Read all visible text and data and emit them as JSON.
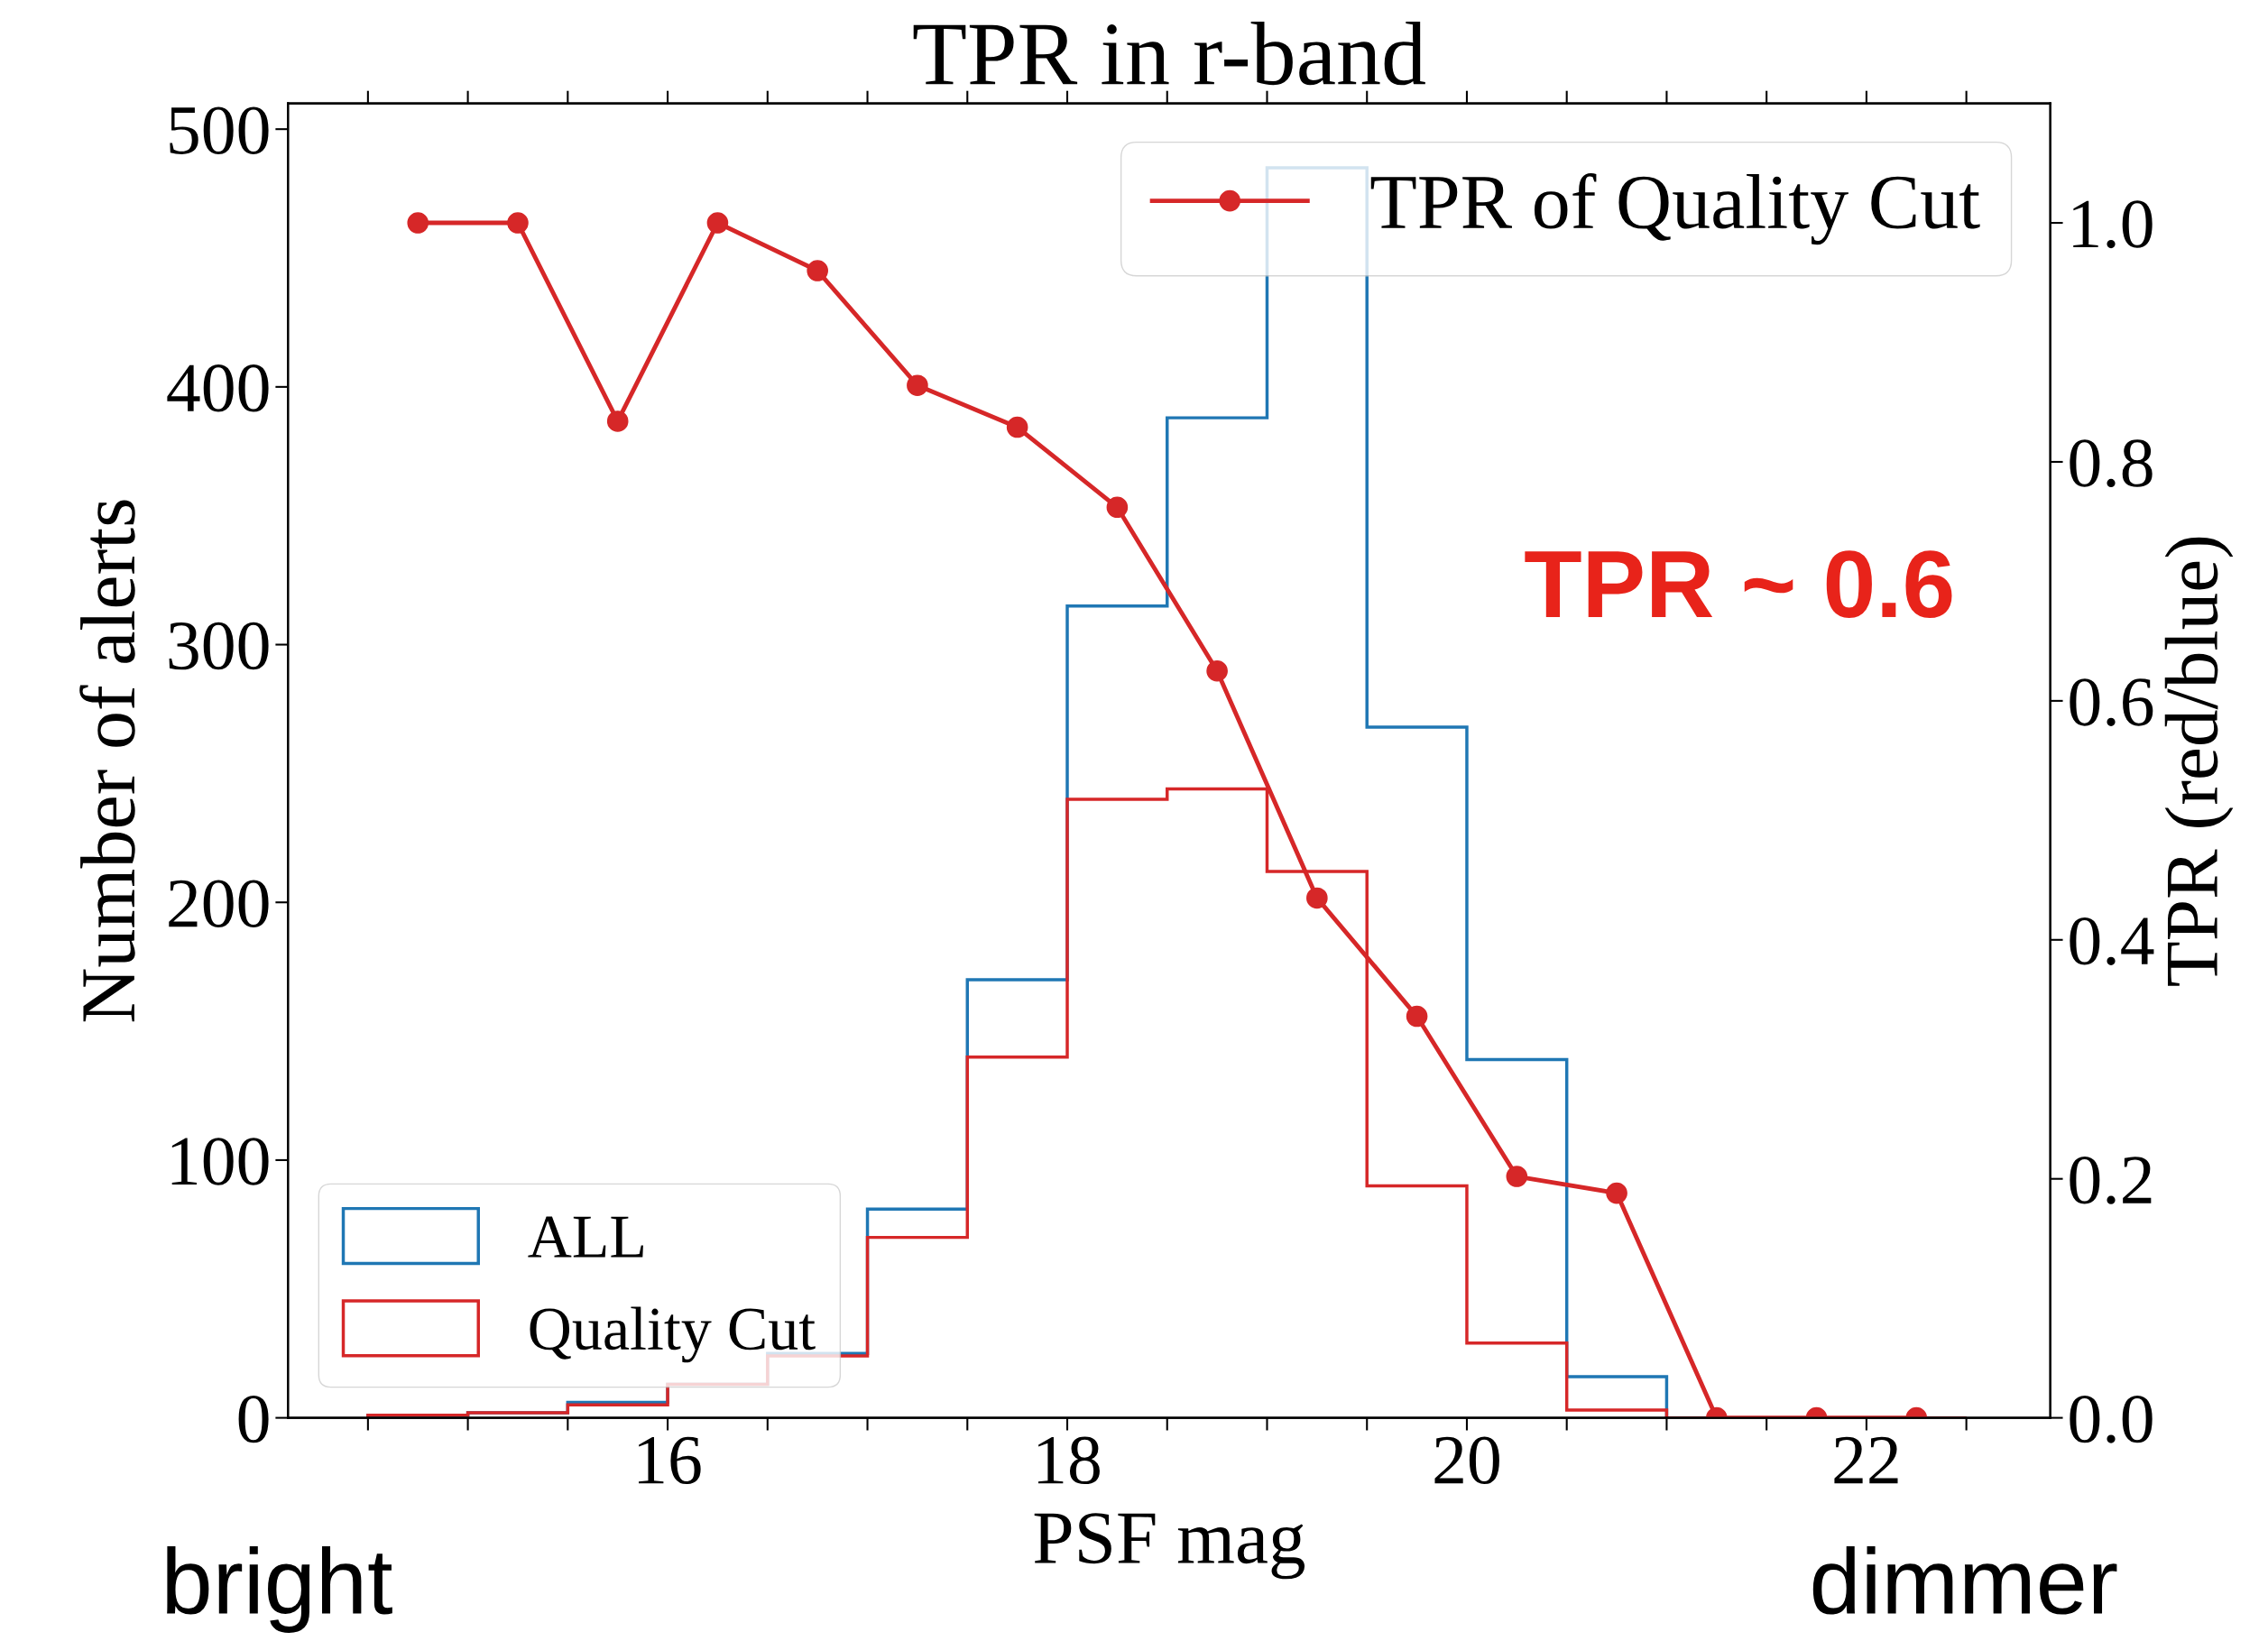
{
  "chart_data": {
    "type": "histogram",
    "title": "TPR in r-band",
    "xlabel": "PSF mag",
    "ylabel": "Number of alerts",
    "y2label": "TPR (red/blue)",
    "bins": [
      14.5,
      15,
      15.5,
      16,
      16.5,
      17,
      17.5,
      18,
      18.5,
      19,
      19.5,
      20,
      20.5,
      21,
      21.5,
      22,
      22.5
    ],
    "series": [
      {
        "name": "ALL",
        "color": "#1f77b4",
        "values": [
          1,
          2,
          6,
          13,
          25,
          81,
          170,
          315,
          388,
          485,
          268,
          139,
          16,
          0,
          0,
          0
        ]
      },
      {
        "name": "Quality Cut",
        "color": "#d62728",
        "values": [
          1,
          2,
          5,
          13,
          24,
          70,
          140,
          240,
          244,
          212,
          90,
          29,
          3,
          0,
          0,
          0
        ]
      },
      {
        "name": "TPR of Quality Cut",
        "type": "line",
        "axis": "y2",
        "color": "#d62728",
        "marker": "circle",
        "x": [
          14.75,
          15.25,
          15.75,
          16.25,
          16.75,
          17.25,
          17.75,
          18.25,
          18.75,
          19.25,
          19.75,
          20.25,
          20.75,
          21.25,
          21.75,
          22.25
        ],
        "values": [
          1.0,
          1.0,
          0.834,
          1.0,
          0.96,
          0.864,
          0.829,
          0.762,
          0.625,
          0.435,
          0.336,
          0.202,
          0.188,
          0,
          0,
          0
        ]
      }
    ],
    "xlim": [
      14.1,
      22.92
    ],
    "xticks": [
      {
        "value": 14.5,
        "label": null
      },
      {
        "value": 15,
        "label": null
      },
      {
        "value": 15.5,
        "label": null
      },
      16,
      {
        "value": 16.5,
        "label": null
      },
      {
        "value": 17,
        "label": null
      },
      {
        "value": 17.5,
        "label": null
      },
      18,
      {
        "value": 18.5,
        "label": null
      },
      {
        "value": 19,
        "label": null
      },
      {
        "value": 19.5,
        "label": null
      },
      20,
      {
        "value": 20.5,
        "label": null
      },
      {
        "value": 21,
        "label": null
      },
      {
        "value": 21.5,
        "label": null
      },
      22,
      {
        "value": 22.5,
        "label": null
      }
    ],
    "ylim": [
      0,
      510
    ],
    "yticks": [
      0,
      100,
      200,
      300,
      400,
      500
    ],
    "y2lim": [
      0,
      1.1
    ],
    "y2ticks": [
      {
        "value": 0,
        "label": "0.0"
      },
      0.2,
      0.4,
      0.6,
      0.8,
      {
        "value": 1,
        "label": "1.0"
      }
    ],
    "annotations": [
      "TPR ~ 0.6",
      "bright",
      "dimmer"
    ],
    "legend": "bottom left",
    "grid": false
  }
}
